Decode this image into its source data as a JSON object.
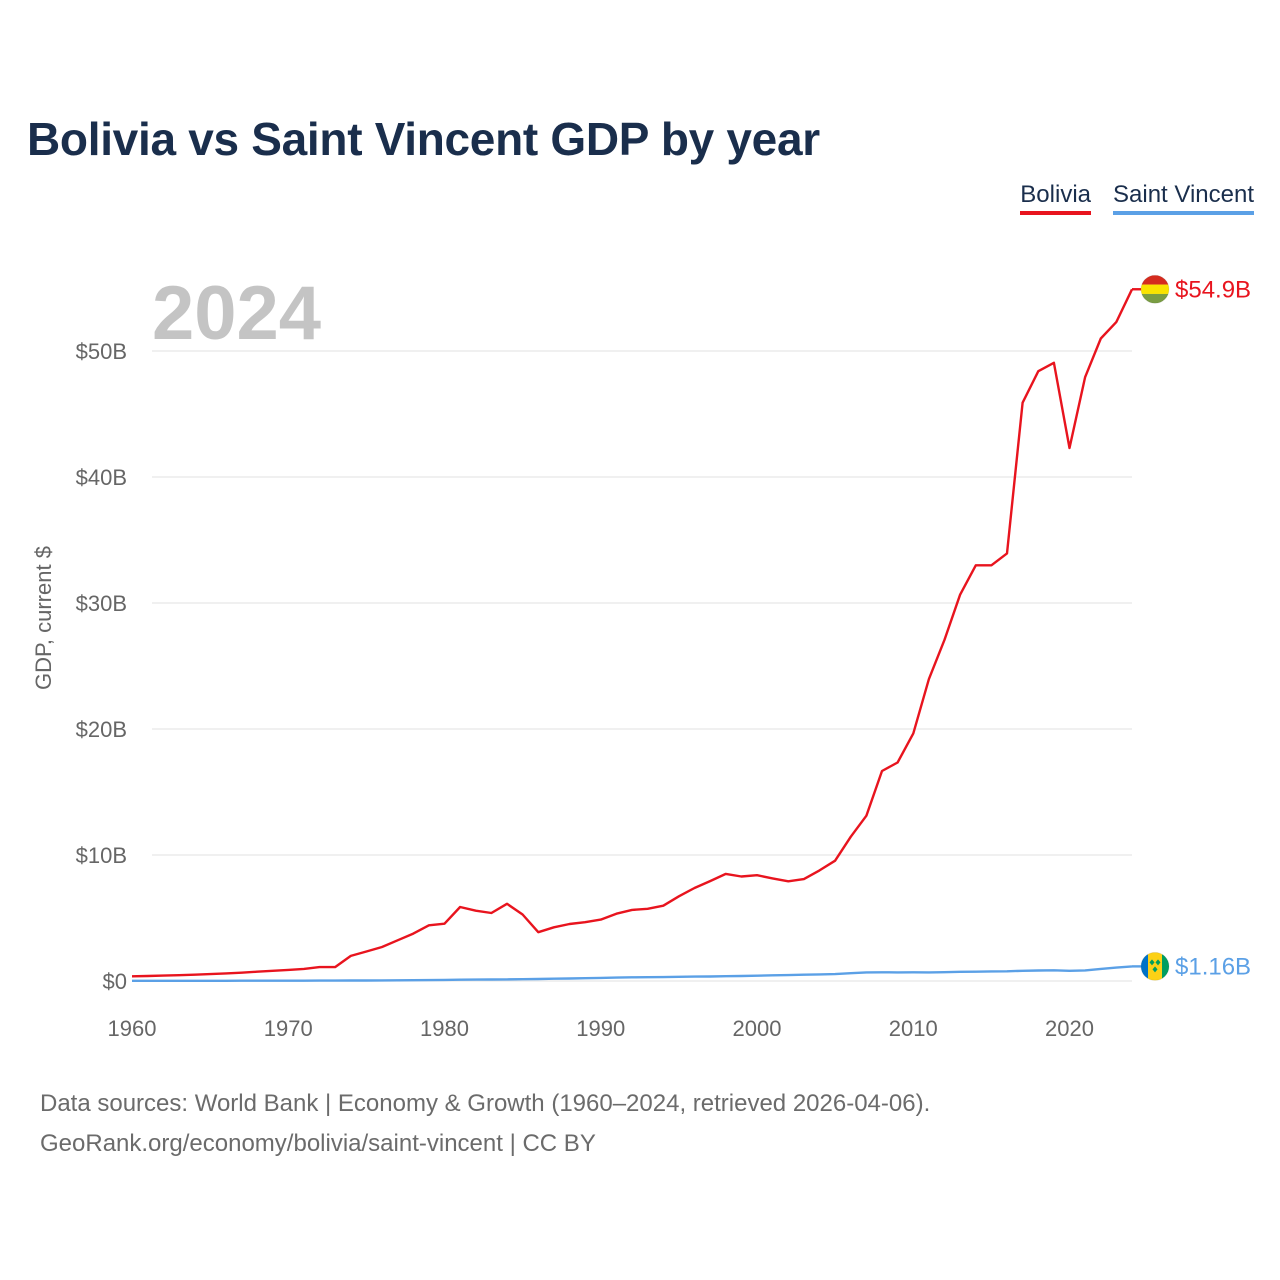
{
  "title": "Bolivia vs Saint Vincent GDP by year",
  "legend": {
    "bolivia": "Bolivia",
    "saint_vincent": "Saint Vincent"
  },
  "colors": {
    "bolivia": "#e8141e",
    "saint_vincent": "#5ba0e6",
    "title": "#1a2e4c",
    "grid": "#e6e6e6",
    "axis_text": "#666666"
  },
  "footer": {
    "line1": "Data sources: World Bank | Economy & Growth (1960–2024, retrieved 2026-04-06).",
    "line2": "GeoRank.org/economy/bolivia/saint-vincent | CC BY"
  },
  "chart_data": {
    "type": "line",
    "title": "Bolivia vs Saint Vincent GDP by year",
    "xlabel": "",
    "ylabel": "GDP, current $",
    "year_label": "2024",
    "xlim": [
      1960,
      2024
    ],
    "ylim": [
      0,
      50
    ],
    "x_ticks": [
      1960,
      1970,
      1980,
      1990,
      2000,
      2010,
      2020
    ],
    "y_ticks": [
      0,
      10,
      20,
      30,
      40,
      50
    ],
    "y_tick_labels": [
      "$0",
      "$10B",
      "$20B",
      "$30B",
      "$40B",
      "$50B"
    ],
    "units": "billions of current US$",
    "x": [
      1960,
      1961,
      1962,
      1963,
      1964,
      1965,
      1966,
      1967,
      1968,
      1969,
      1970,
      1971,
      1972,
      1973,
      1974,
      1975,
      1976,
      1977,
      1978,
      1979,
      1980,
      1981,
      1982,
      1983,
      1984,
      1985,
      1986,
      1987,
      1988,
      1989,
      1990,
      1991,
      1992,
      1993,
      1994,
      1995,
      1996,
      1997,
      1998,
      1999,
      2000,
      2001,
      2002,
      2003,
      2004,
      2005,
      2006,
      2007,
      2008,
      2009,
      2010,
      2011,
      2012,
      2013,
      2014,
      2015,
      2016,
      2017,
      2018,
      2019,
      2020,
      2021,
      2022,
      2023,
      2024
    ],
    "series": [
      {
        "name": "Bolivia",
        "color": "#e8141e",
        "end_label": "$54.9B",
        "values": [
          0.37,
          0.4,
          0.43,
          0.46,
          0.5,
          0.55,
          0.6,
          0.66,
          0.74,
          0.81,
          0.88,
          0.96,
          1.1,
          1.1,
          1.99,
          2.34,
          2.7,
          3.23,
          3.76,
          4.42,
          4.55,
          5.87,
          5.58,
          5.4,
          6.13,
          5.28,
          3.87,
          4.26,
          4.52,
          4.67,
          4.87,
          5.34,
          5.64,
          5.73,
          5.98,
          6.72,
          7.38,
          7.93,
          8.5,
          8.29,
          8.4,
          8.14,
          7.91,
          8.09,
          8.78,
          9.55,
          11.45,
          13.12,
          16.67,
          17.34,
          19.65,
          23.96,
          27.08,
          30.66,
          32.99,
          32.99,
          33.94,
          45.9,
          48.4,
          49.06,
          42.3,
          47.92,
          50.99,
          52.31,
          54.9
        ]
      },
      {
        "name": "Saint Vincent",
        "color": "#5ba0e6",
        "end_label": "$1.16B",
        "values": [
          0.013,
          0.014,
          0.015,
          0.016,
          0.017,
          0.018,
          0.019,
          0.02,
          0.021,
          0.022,
          0.023,
          0.025,
          0.028,
          0.032,
          0.037,
          0.043,
          0.049,
          0.056,
          0.064,
          0.074,
          0.085,
          0.1,
          0.11,
          0.12,
          0.13,
          0.14,
          0.16,
          0.18,
          0.2,
          0.22,
          0.25,
          0.27,
          0.29,
          0.3,
          0.31,
          0.33,
          0.35,
          0.36,
          0.38,
          0.4,
          0.42,
          0.45,
          0.47,
          0.5,
          0.52,
          0.55,
          0.62,
          0.68,
          0.69,
          0.68,
          0.69,
          0.68,
          0.7,
          0.73,
          0.74,
          0.76,
          0.77,
          0.81,
          0.83,
          0.85,
          0.81,
          0.84,
          0.96,
          1.06,
          1.16
        ]
      }
    ]
  }
}
